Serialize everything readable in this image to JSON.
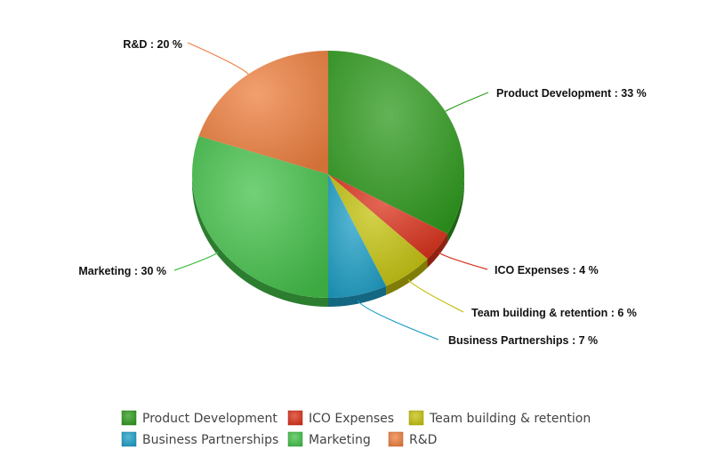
{
  "chart_data": {
    "type": "pie",
    "title": "",
    "categories": [
      "Product Development",
      "ICO Expenses",
      "Team building & retention",
      "Business Partnerships",
      "Marketing",
      "R&D"
    ],
    "values": [
      33,
      4,
      6,
      7,
      30,
      20
    ],
    "unit": "%",
    "labels": [
      "Product Development : 33 %",
      "ICO Expenses : 4 %",
      "Team building & retention : 6 %",
      "Business Partnerships : 7 %",
      "Marketing : 30 %",
      "R&D : 20 %"
    ],
    "colors": [
      "#2f9a1e",
      "#d9321b",
      "#c3c10d",
      "#1f9fc6",
      "#44c04a",
      "#ee7f3f"
    ],
    "legend": {
      "position": "bottom",
      "items": [
        "Product Development",
        "ICO Expenses",
        "Team building & retention",
        "Business Partnerships",
        "Marketing",
        "R&D"
      ]
    }
  }
}
